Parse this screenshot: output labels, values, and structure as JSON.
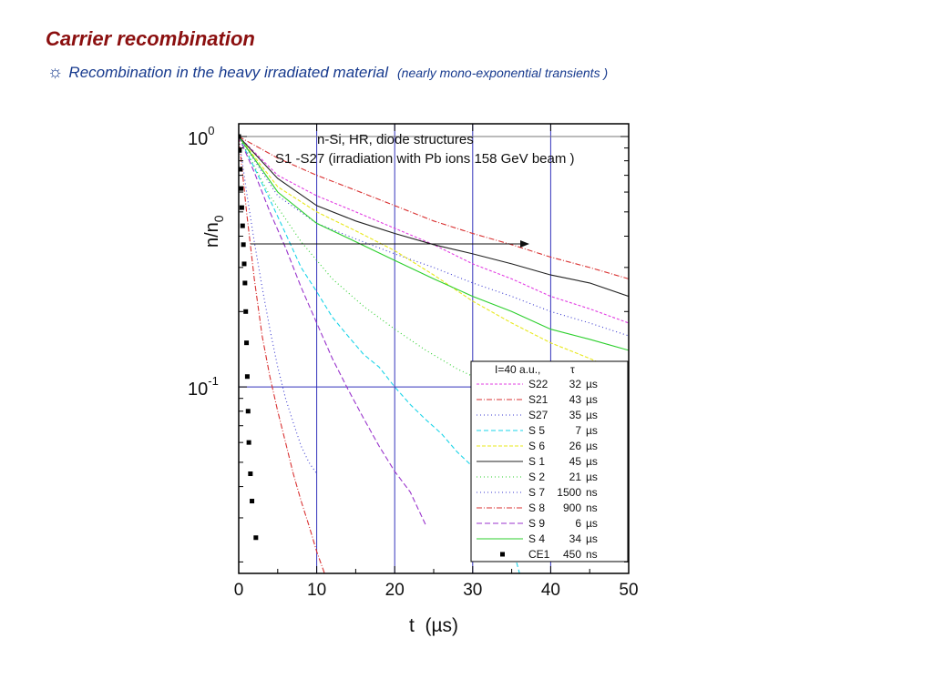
{
  "slide": {
    "title": "Carrier recombination",
    "bullet_icon": "sun-icon",
    "bullet_glyph": "☼",
    "subtitle": "Recombination in the heavy irradiated material",
    "subtitle_note": "(nearly mono-exponential transients )",
    "title_color": "#8b0f0f",
    "subtitle_color": "#173a8e"
  },
  "chart_data": {
    "type": "line",
    "title": "n-Si, HR, diode structures",
    "subtitle": "S1 -S27 (irradiation with Pb ions 158 GeV beam )",
    "xlabel": "t  (µs)",
    "ylabel": "n/n0",
    "xlim": [
      0,
      50
    ],
    "ylim": [
      0.018,
      1.0
    ],
    "yscale": "log",
    "x_ticks": [
      "0",
      "10",
      "20",
      "30",
      "40",
      "50"
    ],
    "y_ticks": [
      {
        "label": "10",
        "exp": "0",
        "value": 1.0
      },
      {
        "label": "10",
        "exp": "-1",
        "value": 0.1
      }
    ],
    "grid": "vertical lines at x = 10, 20, 30, 40 and horizontal line at 10^-1",
    "annotation": "horizontal arrow at n/n0 ≈ 0.37 from t = 0 to t ≈ 37 µs",
    "legend": {
      "placement": "bottom-right",
      "header_left": "I=40 a.u.,",
      "header_right": "τ",
      "entries": [
        {
          "name": "S22",
          "value": "32",
          "unit": "µs",
          "tau_us": 32,
          "color": "#e23be2",
          "dash": "3,2"
        },
        {
          "name": "S21",
          "value": "43",
          "unit": "µs",
          "tau_us": 43,
          "color": "#d93030",
          "dash": "6,2,1,2"
        },
        {
          "name": "S27",
          "value": "35",
          "unit": "µs",
          "tau_us": 35,
          "color": "#3a3ad0",
          "dash": "1,3"
        },
        {
          "name": "S 5",
          "value": "7",
          "unit": "µs",
          "tau_us": 7,
          "color": "#19d4e8",
          "dash": "5,3"
        },
        {
          "name": "S 6",
          "value": "26",
          "unit": "µs",
          "tau_us": 26,
          "color": "#e8e81a",
          "dash": "4,2"
        },
        {
          "name": "S 1",
          "value": "45",
          "unit": "µs",
          "tau_us": 45,
          "color": "#222222",
          "dash": ""
        },
        {
          "name": "S 2",
          "value": "21",
          "unit": "µs",
          "tau_us": 21,
          "color": "#2ccf2c",
          "dash": "1,3"
        },
        {
          "name": "S 7",
          "value": "1500",
          "unit": "ns",
          "tau_us": 1.5,
          "color": "#3a3ad0",
          "dash": "1,3"
        },
        {
          "name": "S 8",
          "value": "900",
          "unit": "ns",
          "tau_us": 0.9,
          "color": "#d93030",
          "dash": "6,2,1,2"
        },
        {
          "name": "S 9",
          "value": "6",
          "unit": "µs",
          "tau_us": 6,
          "color": "#9933cc",
          "dash": "6,3"
        },
        {
          "name": "S 4",
          "value": "34",
          "unit": "µs",
          "tau_us": 34,
          "color": "#2ccf2c",
          "dash": ""
        },
        {
          "name": "CE1",
          "value": "450",
          "unit": "ns",
          "tau_us": 0.45,
          "color": "#000000",
          "dash": "square-markers"
        }
      ]
    },
    "series": [
      {
        "ref": "S22",
        "x": [
          0,
          5,
          10,
          15,
          20,
          25,
          30,
          35,
          40,
          45,
          50
        ],
        "y": [
          1.0,
          0.7,
          0.58,
          0.5,
          0.43,
          0.37,
          0.31,
          0.27,
          0.23,
          0.205,
          0.18
        ]
      },
      {
        "ref": "S21",
        "x": [
          0,
          5,
          10,
          15,
          20,
          25,
          30,
          35,
          40,
          45,
          50
        ],
        "y": [
          1.0,
          0.82,
          0.7,
          0.61,
          0.53,
          0.46,
          0.41,
          0.37,
          0.33,
          0.3,
          0.27
        ]
      },
      {
        "ref": "S27",
        "x": [
          0,
          5,
          10,
          15,
          20,
          25,
          30,
          35,
          40,
          45,
          50
        ],
        "y": [
          1.0,
          0.58,
          0.45,
          0.39,
          0.34,
          0.3,
          0.26,
          0.23,
          0.2,
          0.18,
          0.16
        ]
      },
      {
        "ref": "S 5",
        "x": [
          0,
          2,
          4,
          6,
          8,
          10,
          12,
          14,
          16,
          18,
          20,
          22,
          24,
          26,
          28,
          30,
          32,
          34,
          36
        ],
        "y": [
          1.0,
          0.75,
          0.56,
          0.41,
          0.3,
          0.24,
          0.19,
          0.16,
          0.135,
          0.12,
          0.1,
          0.085,
          0.074,
          0.065,
          0.055,
          0.048,
          0.042,
          0.031,
          0.018
        ]
      },
      {
        "ref": "S 6",
        "x": [
          0,
          5,
          10,
          15,
          20,
          25,
          30,
          35,
          40,
          45,
          50
        ],
        "y": [
          1.0,
          0.63,
          0.5,
          0.42,
          0.35,
          0.28,
          0.22,
          0.18,
          0.15,
          0.13,
          0.11
        ]
      },
      {
        "ref": "S 1",
        "x": [
          0,
          5,
          10,
          15,
          20,
          25,
          30,
          35,
          40,
          45,
          50
        ],
        "y": [
          1.0,
          0.68,
          0.53,
          0.46,
          0.41,
          0.37,
          0.34,
          0.31,
          0.28,
          0.26,
          0.23
        ]
      },
      {
        "ref": "S 2",
        "x": [
          0,
          4,
          8,
          12,
          16,
          20,
          24,
          28,
          32,
          36,
          40,
          44,
          48,
          50
        ],
        "y": [
          1.0,
          0.58,
          0.38,
          0.27,
          0.21,
          0.17,
          0.14,
          0.118,
          0.103,
          0.093,
          0.085,
          0.079,
          0.074,
          0.072
        ]
      },
      {
        "ref": "S 7",
        "x": [
          0,
          1,
          2,
          3,
          4,
          5,
          6,
          7,
          8,
          9,
          10
        ],
        "y": [
          1.0,
          0.6,
          0.38,
          0.25,
          0.17,
          0.12,
          0.09,
          0.072,
          0.058,
          0.05,
          0.045
        ]
      },
      {
        "ref": "S 8",
        "x": [
          0,
          1,
          2,
          3,
          4,
          5,
          6,
          7,
          8,
          9,
          10,
          11
        ],
        "y": [
          1.0,
          0.5,
          0.27,
          0.16,
          0.11,
          0.08,
          0.06,
          0.045,
          0.035,
          0.028,
          0.022,
          0.018
        ]
      },
      {
        "ref": "S 9",
        "x": [
          0,
          2,
          4,
          6,
          8,
          10,
          12,
          14,
          16,
          18,
          20,
          22,
          24
        ],
        "y": [
          1.0,
          0.72,
          0.5,
          0.36,
          0.25,
          0.18,
          0.13,
          0.098,
          0.075,
          0.058,
          0.046,
          0.038,
          0.028
        ]
      },
      {
        "ref": "S 4",
        "x": [
          0,
          5,
          10,
          15,
          20,
          25,
          30,
          35,
          40,
          45,
          50
        ],
        "y": [
          1.0,
          0.6,
          0.45,
          0.38,
          0.32,
          0.27,
          0.23,
          0.2,
          0.17,
          0.155,
          0.14
        ]
      },
      {
        "ref": "CE1",
        "x": [
          0,
          0.1,
          0.2,
          0.3,
          0.4,
          0.5,
          0.6,
          0.7,
          0.8,
          0.9,
          1.0,
          1.1,
          1.2,
          1.3,
          1.5,
          1.7,
          2.2
        ],
        "y": [
          1.0,
          0.88,
          0.74,
          0.62,
          0.52,
          0.44,
          0.37,
          0.31,
          0.26,
          0.2,
          0.15,
          0.11,
          0.08,
          0.06,
          0.045,
          0.035,
          0.025
        ]
      }
    ]
  }
}
